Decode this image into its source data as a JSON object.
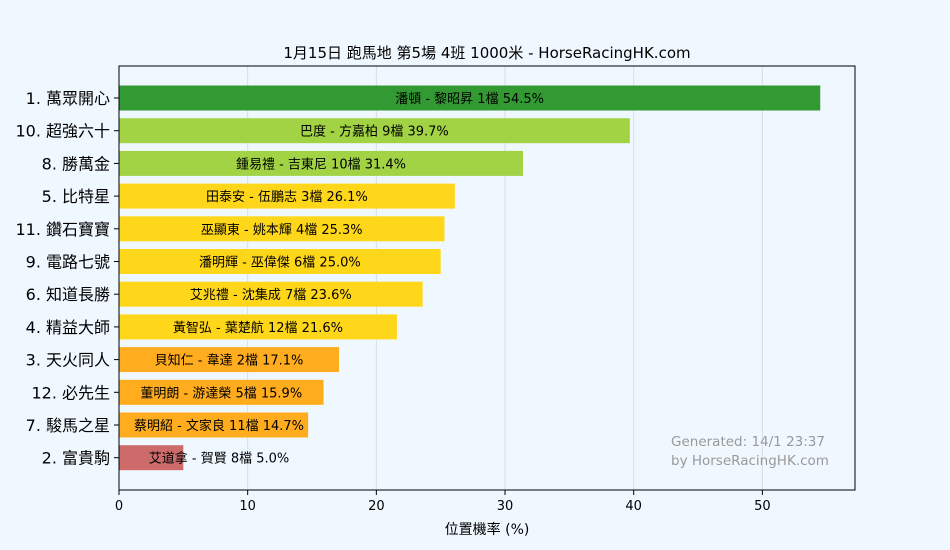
{
  "chart_data": {
    "type": "bar",
    "orientation": "horizontal",
    "title": "1月15日  跑馬地  第5場  4班  1000米 - HorseRacingHK.com",
    "xlabel": "位置機率 (%)",
    "ylabel": "",
    "xlim": [
      0,
      57.2
    ],
    "xticks": [
      0,
      10,
      20,
      30,
      40,
      50
    ],
    "grid": true,
    "categories": [
      "1. 萬眾開心",
      "10. 超強六十",
      "8. 勝萬金",
      "5. 比特星",
      "11. 鑽石寶寶",
      "9. 電路七號",
      "6. 知道長勝",
      "4. 精益大師",
      "3. 天火同人",
      "12. 必先生",
      "7. 駿馬之星",
      "2. 富貴駒"
    ],
    "values": [
      54.5,
      39.7,
      31.4,
      26.1,
      25.3,
      25.0,
      23.6,
      21.6,
      17.1,
      15.9,
      14.7,
      5.0
    ],
    "bar_labels": [
      "潘頓 - 黎昭昇 1檔  54.5%",
      "巴度 - 方嘉柏 9檔  39.7%",
      "鍾易禮 - 吉東尼 10檔  31.4%",
      "田泰安 - 伍鵬志 3檔  26.1%",
      "巫顯東 - 姚本輝 4檔  25.3%",
      "潘明輝 - 巫偉傑 6檔  25.0%",
      "艾兆禮 - 沈集成 7檔  23.6%",
      "黃智弘 - 葉楚航 12檔  21.6%",
      "貝知仁 - 韋達 2檔  17.1%",
      "董明朗 - 游達榮 5檔  15.9%",
      "蔡明紹 - 文家良 11檔  14.7%",
      "艾道拿 - 賀賢 8檔  5.0%"
    ],
    "colors": [
      "#339933",
      "#a1d344",
      "#a1d344",
      "#ffd71a",
      "#ffd71a",
      "#ffd71a",
      "#ffd71a",
      "#ffd71a",
      "#ffad1f",
      "#ffad1f",
      "#ffad1f",
      "#cd6b6b"
    ],
    "watermark": [
      "Generated: 14/1 23:37",
      "by HorseRacingHK.com"
    ]
  }
}
